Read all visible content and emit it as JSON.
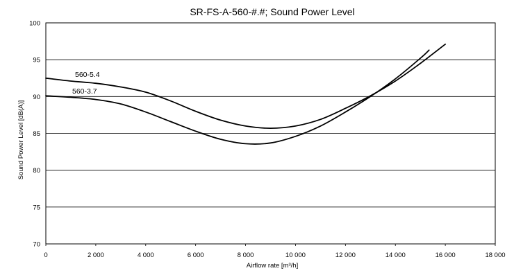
{
  "chart_data": {
    "type": "line",
    "title": "SR-FS-A-560-#.#; Sound Power Level",
    "xlabel": "Airflow rate [m³/h]",
    "ylabel": "Sound Power Level [dB(A)]",
    "xlim": [
      0,
      18000
    ],
    "ylim": [
      70,
      100
    ],
    "x_ticks": [
      0,
      2000,
      4000,
      6000,
      8000,
      10000,
      12000,
      14000,
      16000,
      18000
    ],
    "x_tick_labels": [
      "0",
      "2 000",
      "4 000",
      "6 000",
      "8 000",
      "10 000",
      "12 000",
      "14 000",
      "16 000",
      "18 000"
    ],
    "y_ticks": [
      70,
      75,
      80,
      85,
      90,
      95,
      100
    ],
    "y_tick_labels": [
      "70",
      "75",
      "80",
      "85",
      "90",
      "95",
      "100"
    ],
    "grid": "horizontal",
    "legend": "none",
    "series": [
      {
        "name": "560-5.4",
        "x": [
          0,
          1000,
          2000,
          3000,
          4000,
          5000,
          6000,
          7000,
          8000,
          9000,
          10000,
          11000,
          12000,
          13000,
          14000,
          15000,
          16000
        ],
        "values": [
          92.5,
          92.1,
          91.8,
          91.3,
          90.6,
          89.4,
          88.0,
          86.8,
          86.0,
          85.7,
          86.0,
          86.9,
          88.4,
          90.1,
          92.1,
          94.5,
          97.1
        ]
      },
      {
        "name": "560-3.7",
        "x": [
          0,
          1000,
          2000,
          3000,
          4000,
          5000,
          6000,
          7000,
          8000,
          9000,
          10000,
          11000,
          12000,
          13000,
          14000,
          15000,
          15350
        ],
        "values": [
          90.1,
          89.9,
          89.6,
          89.0,
          87.9,
          86.6,
          85.3,
          84.2,
          83.6,
          83.7,
          84.6,
          86.0,
          87.9,
          90.0,
          92.4,
          95.2,
          96.3
        ]
      }
    ]
  }
}
